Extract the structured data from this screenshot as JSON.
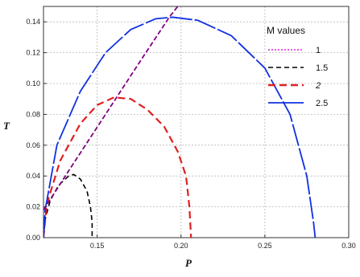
{
  "chart_data": {
    "type": "line",
    "xlabel": "P",
    "ylabel": "T",
    "xlim": [
      0.118,
      0.3
    ],
    "ylim": [
      0.0,
      0.15
    ],
    "x_ticks": [
      "0.15",
      "0.20",
      "0.25",
      "0.30"
    ],
    "x_tick_values": [
      0.15,
      0.2,
      0.25,
      0.3
    ],
    "y_ticks": [
      "0.00",
      "0.02",
      "0.04",
      "0.06",
      "0.08",
      "0.10",
      "0.12",
      "0.14"
    ],
    "y_tick_values": [
      0,
      0.02,
      0.04,
      0.06,
      0.08,
      0.1,
      0.12,
      0.14
    ],
    "grid": true,
    "legend": {
      "title": "M values",
      "position": "top-right",
      "entries": [
        "1",
        "1.5",
        "2",
        "2.5"
      ]
    },
    "series": [
      {
        "name": "1",
        "color": "#e020e0",
        "style": "dotted",
        "points": [
          [
            0.118,
            0.0
          ],
          [
            0.118,
            0.003
          ]
        ]
      },
      {
        "name": "1.5",
        "color": "#000000",
        "style": "dashed",
        "points": [
          [
            0.118,
            0.0
          ],
          [
            0.119,
            0.012
          ],
          [
            0.122,
            0.024
          ],
          [
            0.127,
            0.034
          ],
          [
            0.133,
            0.04
          ],
          [
            0.136,
            0.041
          ],
          [
            0.14,
            0.038
          ],
          [
            0.144,
            0.03
          ],
          [
            0.146,
            0.02
          ],
          [
            0.147,
            0.01
          ],
          [
            0.147,
            0.0
          ]
        ]
      },
      {
        "name": "2",
        "color": "#e02020",
        "style": "dashed",
        "points": [
          [
            0.118,
            0.0
          ],
          [
            0.12,
            0.022
          ],
          [
            0.128,
            0.05
          ],
          [
            0.14,
            0.074
          ],
          [
            0.15,
            0.086
          ],
          [
            0.16,
            0.091
          ],
          [
            0.17,
            0.09
          ],
          [
            0.18,
            0.083
          ],
          [
            0.19,
            0.072
          ],
          [
            0.198,
            0.056
          ],
          [
            0.203,
            0.04
          ],
          [
            0.205,
            0.02
          ],
          [
            0.206,
            0.0
          ]
        ]
      },
      {
        "name": "2.5",
        "color": "#1030e0",
        "style": "solid",
        "points": [
          [
            0.118,
            0.0
          ],
          [
            0.119,
            0.018
          ],
          [
            0.126,
            0.06
          ],
          [
            0.14,
            0.095
          ],
          [
            0.155,
            0.12
          ],
          [
            0.17,
            0.135
          ],
          [
            0.185,
            0.142
          ],
          [
            0.195,
            0.143
          ],
          [
            0.21,
            0.141
          ],
          [
            0.23,
            0.131
          ],
          [
            0.25,
            0.11
          ],
          [
            0.265,
            0.08
          ],
          [
            0.275,
            0.04
          ],
          [
            0.279,
            0.01
          ],
          [
            0.28,
            0.0
          ]
        ]
      },
      {
        "name": "",
        "color": "#800080",
        "style": "dashed",
        "points": [
          [
            0.118,
            0.018
          ],
          [
            0.134,
            0.045
          ],
          [
            0.158,
            0.085
          ],
          [
            0.176,
            0.115
          ],
          [
            0.193,
            0.143
          ],
          [
            0.198,
            0.15
          ]
        ]
      }
    ]
  }
}
